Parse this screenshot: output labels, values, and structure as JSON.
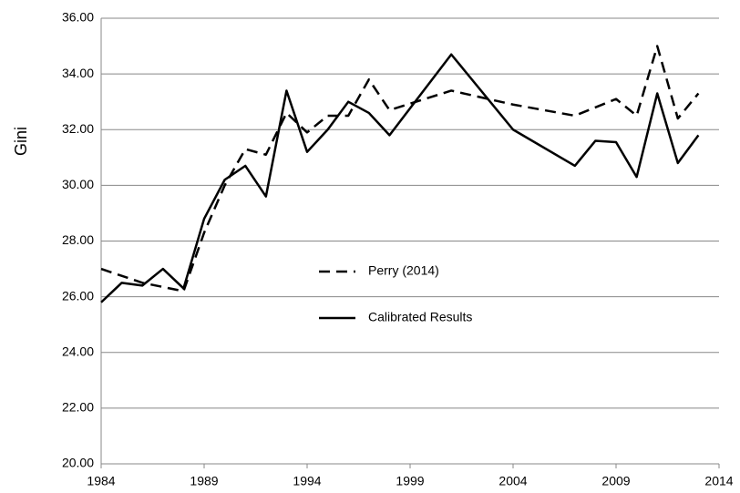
{
  "chart_data": {
    "type": "line",
    "y_label": "Gini",
    "xlim": [
      1984,
      2014
    ],
    "xticks": [
      1984,
      1989,
      1994,
      1999,
      2004,
      2009,
      2014
    ],
    "ylim": [
      20,
      36
    ],
    "yticks": [
      {
        "value": 20,
        "label": "20.00"
      },
      {
        "value": 22,
        "label": "22.00"
      },
      {
        "value": 24,
        "label": "24.00"
      },
      {
        "value": 26,
        "label": "26.00"
      },
      {
        "value": 28,
        "label": "28.00"
      },
      {
        "value": 30,
        "label": "30.00"
      },
      {
        "value": 32,
        "label": "32.00"
      },
      {
        "value": 34,
        "label": "34.00"
      },
      {
        "value": 36,
        "label": "36.00"
      }
    ],
    "grid": true,
    "series": [
      {
        "name": "Perry (2014)",
        "color": "#000000",
        "dash": true,
        "x": [
          1984,
          1986,
          1988,
          1989,
          1990,
          1991,
          1992,
          1993,
          1994,
          1995,
          1996,
          1997,
          1998,
          2001,
          2004,
          2007,
          2009,
          2010,
          2011,
          2012,
          2013
        ],
        "values": [
          27.0,
          26.5,
          26.2,
          28.3,
          30.0,
          31.3,
          31.1,
          32.6,
          31.9,
          32.5,
          32.5,
          33.8,
          32.7,
          33.4,
          32.9,
          32.5,
          33.1,
          32.5,
          35.0,
          32.4,
          33.3
        ]
      },
      {
        "name": "Calibrated Results",
        "color": "#000000",
        "dash": false,
        "x": [
          1984,
          1985,
          1986,
          1987,
          1988,
          1989,
          1990,
          1991,
          1992,
          1993,
          1994,
          1995,
          1996,
          1997,
          1998,
          2001,
          2004,
          2007,
          2008,
          2009,
          2010,
          2011,
          2012,
          2013
        ],
        "values": [
          25.8,
          26.5,
          26.4,
          27.0,
          26.3,
          28.8,
          30.2,
          30.7,
          29.6,
          33.4,
          31.2,
          32.0,
          33.0,
          32.6,
          31.8,
          34.7,
          32.0,
          30.7,
          31.6,
          31.55,
          30.3,
          33.3,
          30.8,
          31.8
        ]
      }
    ]
  }
}
